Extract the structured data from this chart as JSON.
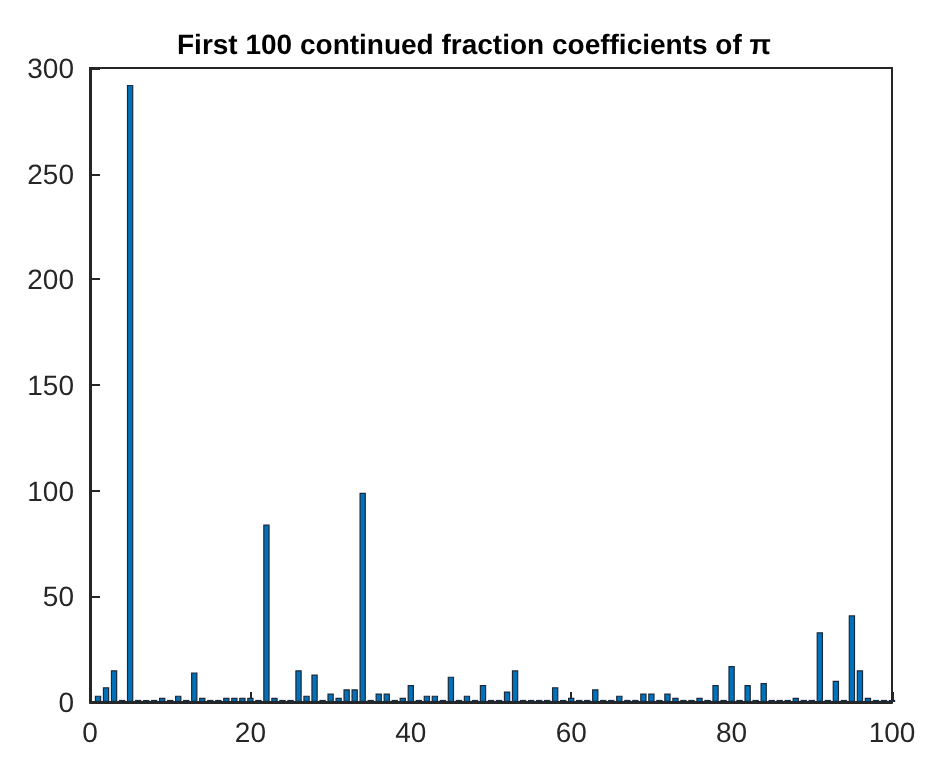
{
  "chart_data": {
    "type": "bar",
    "title": "First 100 continued fraction coefficients of π",
    "x": [
      1,
      2,
      3,
      4,
      5,
      6,
      7,
      8,
      9,
      10,
      11,
      12,
      13,
      14,
      15,
      16,
      17,
      18,
      19,
      20,
      21,
      22,
      23,
      24,
      25,
      26,
      27,
      28,
      29,
      30,
      31,
      32,
      33,
      34,
      35,
      36,
      37,
      38,
      39,
      40,
      41,
      42,
      43,
      44,
      45,
      46,
      47,
      48,
      49,
      50,
      51,
      52,
      53,
      54,
      55,
      56,
      57,
      58,
      59,
      60,
      61,
      62,
      63,
      64,
      65,
      66,
      67,
      68,
      69,
      70,
      71,
      72,
      73,
      74,
      75,
      76,
      77,
      78,
      79,
      80,
      81,
      82,
      83,
      84,
      85,
      86,
      87,
      88,
      89,
      90,
      91,
      92,
      93,
      94,
      95,
      96,
      97,
      98,
      99,
      100
    ],
    "values": [
      3,
      7,
      15,
      1,
      292,
      1,
      1,
      1,
      2,
      1,
      3,
      1,
      14,
      2,
      1,
      1,
      2,
      2,
      2,
      2,
      1,
      84,
      2,
      1,
      1,
      15,
      3,
      13,
      1,
      4,
      2,
      6,
      6,
      99,
      1,
      4,
      4,
      1,
      2,
      8,
      1,
      3,
      3,
      1,
      12,
      1,
      3,
      1,
      8,
      1,
      1,
      5,
      15,
      1,
      1,
      1,
      1,
      7,
      1,
      2,
      1,
      1,
      6,
      1,
      1,
      3,
      1,
      1,
      4,
      4,
      1,
      4,
      2,
      1,
      1,
      2,
      1,
      8,
      1,
      17,
      1,
      8,
      1,
      9,
      1,
      1,
      1,
      2,
      1,
      1,
      33,
      1,
      10,
      1,
      41,
      15,
      2,
      1,
      1,
      1
    ],
    "color": "#0072bd",
    "xlim": [
      0,
      100
    ],
    "xticks": [
      0,
      20,
      40,
      60,
      80,
      100
    ],
    "ylim": [
      0,
      300
    ],
    "yticks": [
      0,
      50,
      100,
      150,
      200,
      250,
      300
    ],
    "grid": false
  }
}
